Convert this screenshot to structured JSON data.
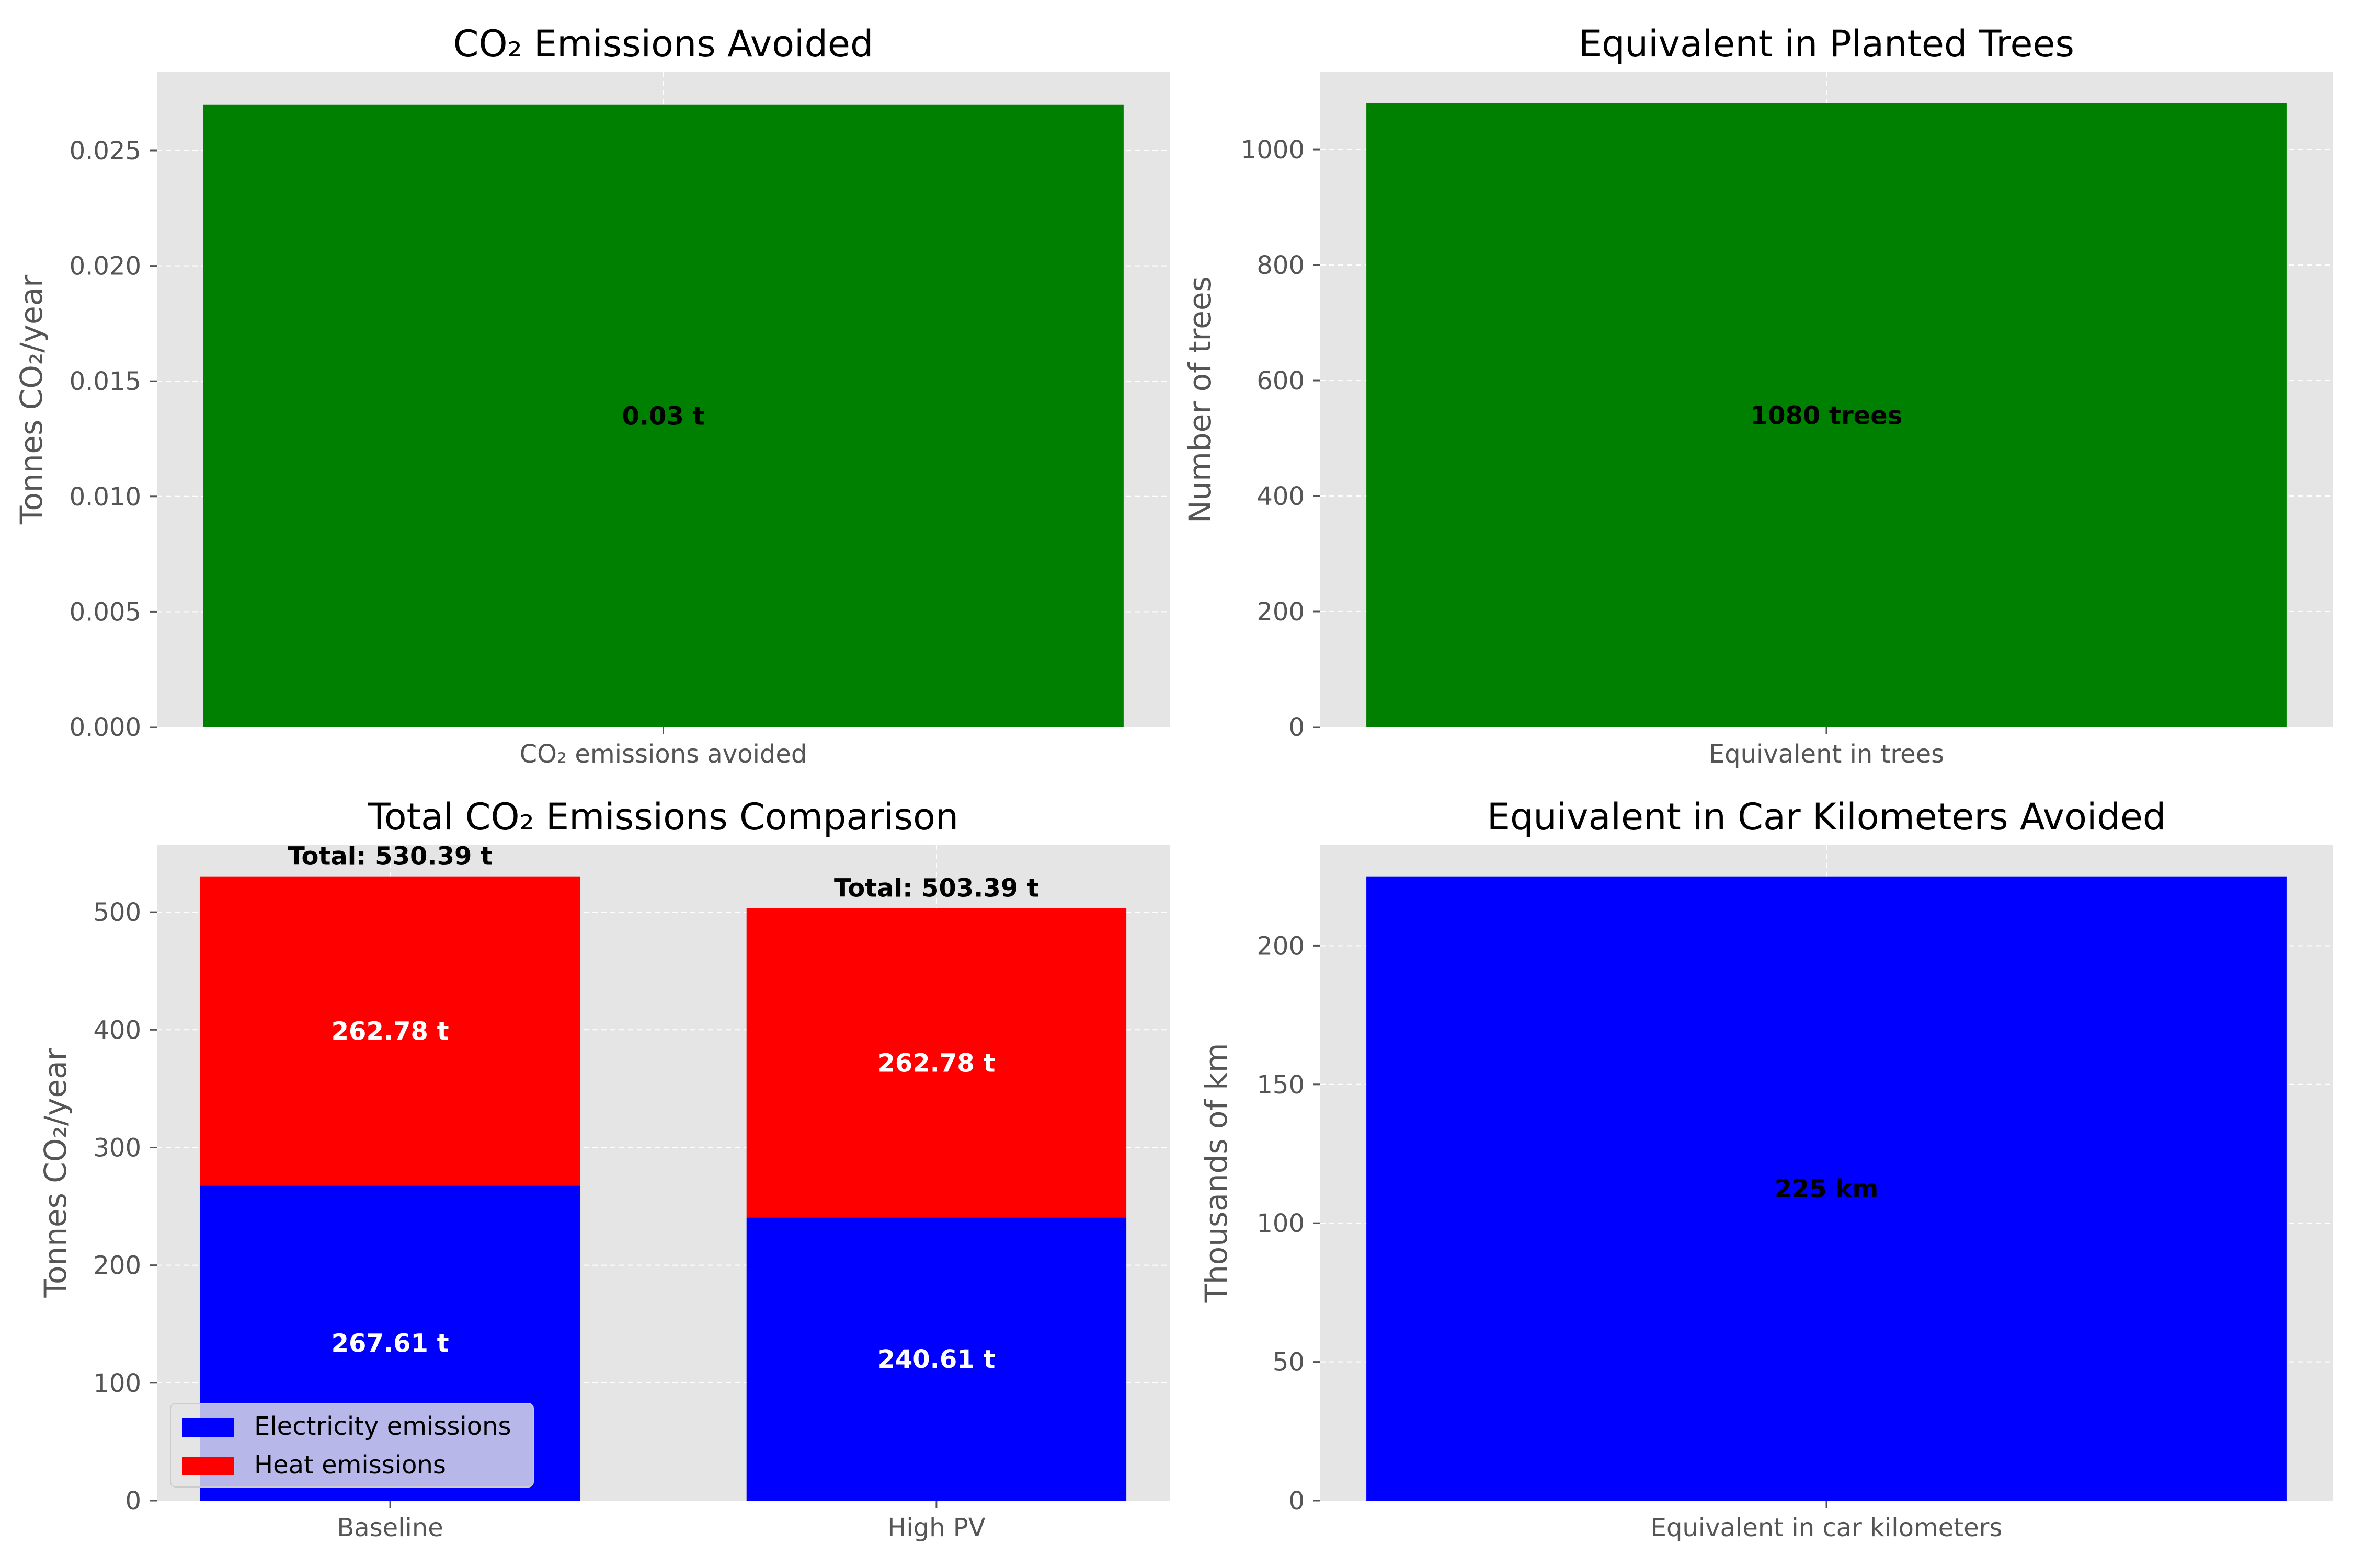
{
  "chart_data": [
    {
      "type": "bar",
      "title": "CO₂ Emissions Avoided",
      "xlabel": "",
      "ylabel": "Tonnes CO₂/year",
      "categories": [
        "CO₂ emissions avoided"
      ],
      "values": [
        0.027
      ],
      "data_labels": [
        "0.03 t"
      ],
      "ylim": [
        0,
        0.0284
      ],
      "yticks": [
        0,
        0.005,
        0.01,
        0.015,
        0.02,
        0.025
      ],
      "ytick_labels": [
        "0.000",
        "0.005",
        "0.010",
        "0.015",
        "0.020",
        "0.025"
      ],
      "grid": true,
      "colors": [
        "#008000"
      ]
    },
    {
      "type": "bar",
      "title": "Equivalent in Planted Trees",
      "xlabel": "",
      "ylabel": "Number of trees",
      "categories": [
        "Equivalent in trees"
      ],
      "values": [
        1080
      ],
      "data_labels": [
        "1080 trees"
      ],
      "ylim": [
        0,
        1134
      ],
      "yticks": [
        0,
        200,
        400,
        600,
        800,
        1000
      ],
      "ytick_labels": [
        "0",
        "200",
        "400",
        "600",
        "800",
        "1000"
      ],
      "grid": true,
      "colors": [
        "#008000"
      ]
    },
    {
      "type": "bar",
      "stacked": true,
      "title": "Total CO₂ Emissions Comparison",
      "xlabel": "",
      "ylabel": "Tonnes CO₂/year",
      "categories": [
        "Baseline",
        "High PV"
      ],
      "series": [
        {
          "name": "Electricity emissions",
          "values": [
            267.61,
            240.61
          ],
          "color": "#0000ff",
          "labels": [
            "267.61 t",
            "240.61 t"
          ]
        },
        {
          "name": "Heat emissions",
          "values": [
            262.78,
            262.78
          ],
          "color": "#ff0000",
          "labels": [
            "262.78 t",
            "262.78 t"
          ]
        }
      ],
      "totals": [
        "Total: 530.39 t",
        "Total: 503.39 t"
      ],
      "ylim": [
        0,
        556.9
      ],
      "yticks": [
        0,
        100,
        200,
        300,
        400,
        500
      ],
      "ytick_labels": [
        "0",
        "100",
        "200",
        "300",
        "400",
        "500"
      ],
      "grid": true,
      "legend": "lower-left"
    },
    {
      "type": "bar",
      "title": "Equivalent in Car Kilometers Avoided",
      "xlabel": "",
      "ylabel": "Thousands of km",
      "categories": [
        "Equivalent in car kilometers"
      ],
      "values": [
        225
      ],
      "data_labels": [
        "225 km"
      ],
      "ylim": [
        0,
        236.25
      ],
      "yticks": [
        0,
        50,
        100,
        150,
        200
      ],
      "ytick_labels": [
        "0",
        "50",
        "100",
        "150",
        "200"
      ],
      "grid": true,
      "colors": [
        "#0000ff"
      ]
    }
  ]
}
